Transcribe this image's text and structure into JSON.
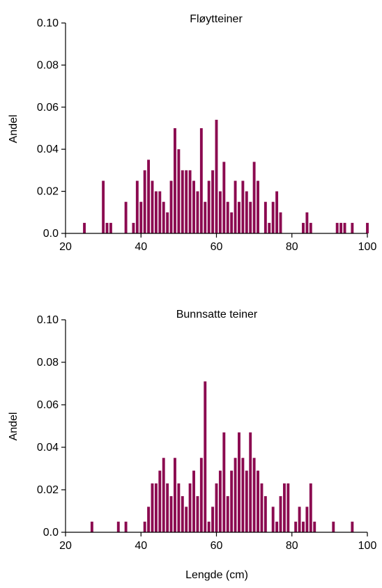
{
  "chart_data": [
    {
      "type": "bar",
      "title": "Fløytteiner",
      "xlabel": "",
      "ylabel": "Andel",
      "xlim": [
        20,
        100
      ],
      "ylim": [
        0,
        0.1
      ],
      "x_ticks": [
        "20",
        "40",
        "60",
        "80",
        "100"
      ],
      "y_ticks": [
        "0.0",
        "0.02",
        "0.04",
        "0.06",
        "0.08",
        "0.10"
      ],
      "color": "#8b0a50",
      "x": [
        25,
        30,
        31,
        32,
        36,
        38,
        39,
        40,
        41,
        42,
        43,
        44,
        45,
        46,
        47,
        48,
        49,
        50,
        51,
        52,
        53,
        54,
        55,
        56,
        57,
        58,
        59,
        60,
        61,
        62,
        63,
        64,
        65,
        66,
        67,
        68,
        69,
        70,
        71,
        73,
        74,
        75,
        76,
        77,
        83,
        84,
        85,
        92,
        93,
        94,
        96,
        100
      ],
      "values": [
        0.005,
        0.025,
        0.005,
        0.005,
        0.015,
        0.005,
        0.025,
        0.015,
        0.03,
        0.035,
        0.025,
        0.02,
        0.02,
        0.015,
        0.01,
        0.025,
        0.05,
        0.04,
        0.03,
        0.03,
        0.03,
        0.025,
        0.02,
        0.05,
        0.015,
        0.025,
        0.03,
        0.054,
        0.02,
        0.034,
        0.015,
        0.01,
        0.025,
        0.015,
        0.025,
        0.02,
        0.015,
        0.034,
        0.025,
        0.015,
        0.005,
        0.015,
        0.02,
        0.01,
        0.005,
        0.01,
        0.005,
        0.005,
        0.005,
        0.005,
        0.005,
        0.005
      ]
    },
    {
      "type": "bar",
      "title": "Bunnsatte teiner",
      "xlabel": "Lengde (cm)",
      "ylabel": "Andel",
      "xlim": [
        20,
        100
      ],
      "ylim": [
        0,
        0.1
      ],
      "x_ticks": [
        "20",
        "40",
        "60",
        "80",
        "100"
      ],
      "y_ticks": [
        "0.0",
        "0.02",
        "0.04",
        "0.06",
        "0.08",
        "0.10"
      ],
      "color": "#8b0a50",
      "x": [
        27,
        34,
        36,
        41,
        42,
        43,
        44,
        45,
        46,
        47,
        48,
        49,
        50,
        51,
        52,
        53,
        54,
        55,
        56,
        57,
        58,
        59,
        60,
        61,
        62,
        63,
        64,
        65,
        66,
        67,
        68,
        69,
        70,
        71,
        72,
        73,
        75,
        76,
        77,
        78,
        79,
        81,
        82,
        83,
        84,
        85,
        86,
        91,
        96
      ],
      "values": [
        0.005,
        0.005,
        0.005,
        0.005,
        0.012,
        0.023,
        0.023,
        0.029,
        0.035,
        0.023,
        0.017,
        0.035,
        0.023,
        0.017,
        0.012,
        0.023,
        0.029,
        0.017,
        0.035,
        0.071,
        0.005,
        0.012,
        0.023,
        0.029,
        0.047,
        0.017,
        0.029,
        0.035,
        0.047,
        0.035,
        0.029,
        0.047,
        0.035,
        0.029,
        0.023,
        0.017,
        0.012,
        0.005,
        0.017,
        0.023,
        0.023,
        0.005,
        0.012,
        0.005,
        0.012,
        0.023,
        0.005,
        0.005,
        0.005
      ]
    }
  ]
}
